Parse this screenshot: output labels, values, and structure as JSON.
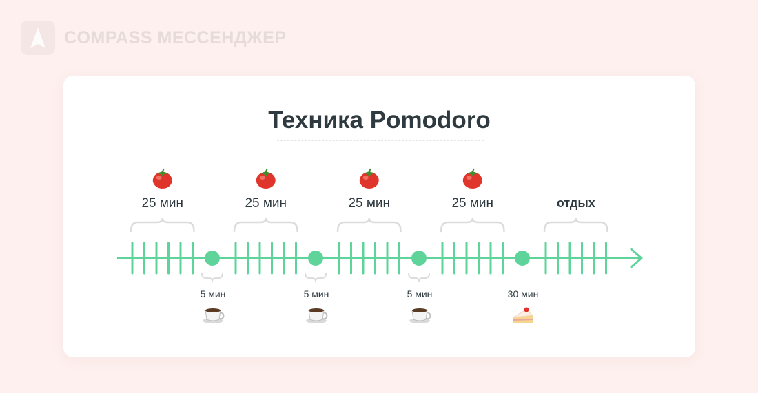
{
  "brand": {
    "logo_icon": "compass-logo-icon",
    "name": "COMPASS МЕССЕНДЖЕР"
  },
  "title": "Техника Pomodoro",
  "colors": {
    "timeline": "#5fd49a",
    "brace": "#dcdcdc",
    "text": "#2e3a3f"
  },
  "timeline": {
    "work_blocks": [
      {
        "icon": "tomato-icon",
        "label": "25 мин",
        "ticks": 6
      },
      {
        "icon": "tomato-icon",
        "label": "25 мин",
        "ticks": 6
      },
      {
        "icon": "tomato-icon",
        "label": "25 мин",
        "ticks": 6
      },
      {
        "icon": "tomato-icon",
        "label": "25 мин",
        "ticks": 6
      },
      {
        "icon": "",
        "label": "отдых",
        "ticks": 6
      }
    ],
    "breaks": [
      {
        "icon": "coffee-cup-icon",
        "label": "5 мин"
      },
      {
        "icon": "coffee-cup-icon",
        "label": "5 мин"
      },
      {
        "icon": "coffee-cup-icon",
        "label": "5 мин"
      },
      {
        "icon": "cake-icon",
        "label": "30 мин"
      }
    ]
  }
}
